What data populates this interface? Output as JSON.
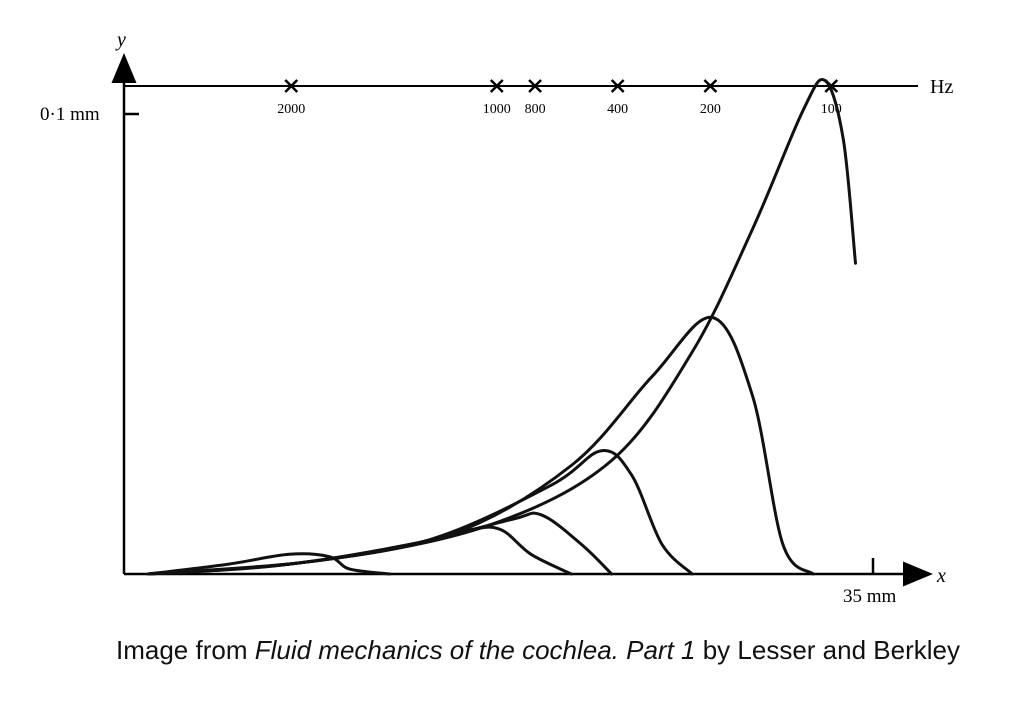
{
  "chart_data": {
    "type": "line",
    "title": "",
    "xlabel": "x",
    "ylabel": "y",
    "y_tick_label": "0·1 mm",
    "x_tick_label": "35 mm",
    "top_axis": {
      "unit": "Hz",
      "markers": [
        {
          "freq": 2000,
          "label": "2000",
          "x_mm": 8.1
        },
        {
          "freq": 1000,
          "label": "1000",
          "x_mm": 18.3
        },
        {
          "freq": 800,
          "label": "800",
          "x_mm": 20.2
        },
        {
          "freq": 400,
          "label": "400",
          "x_mm": 24.3
        },
        {
          "freq": 200,
          "label": "200",
          "x_mm": 28.9
        },
        {
          "freq": 100,
          "label": "100",
          "x_mm": 34.9
        }
      ]
    },
    "xlim": [
      -0.2,
      39.7
    ],
    "ylim": [
      0,
      0.105
    ],
    "series": [
      {
        "x": [
          1,
          5,
          8,
          10,
          11,
          13
        ],
        "y": [
          0,
          0.002,
          0.004,
          0.0035,
          0.001,
          0
        ]
      },
      {
        "x": [
          1,
          8,
          14,
          17,
          18.5,
          20,
          22
        ],
        "y": [
          0,
          0.002,
          0.006,
          0.009,
          0.009,
          0.004,
          0
        ]
      },
      {
        "x": [
          1,
          8,
          14,
          19,
          20.5,
          22.5,
          24
        ],
        "y": [
          0,
          0.002,
          0.006,
          0.011,
          0.012,
          0.006,
          0
        ]
      },
      {
        "x": [
          1,
          8,
          15,
          21,
          23.5,
          25,
          26.5,
          28
        ],
        "y": [
          0,
          0.002,
          0.007,
          0.018,
          0.025,
          0.02,
          0.006,
          0
        ]
      },
      {
        "x": [
          1,
          8,
          16,
          22,
          26,
          29,
          31,
          32.5,
          34
        ],
        "y": [
          0,
          0.002,
          0.008,
          0.022,
          0.04,
          0.052,
          0.036,
          0.006,
          0
        ]
      },
      {
        "x": [
          1,
          10,
          18,
          24,
          28,
          31,
          33.5,
          34.6,
          35.5,
          36.1
        ],
        "y": [
          0,
          0.003,
          0.01,
          0.023,
          0.045,
          0.07,
          0.094,
          0.1,
          0.088,
          0.063
        ]
      }
    ]
  },
  "caption": {
    "prefix": "Image from ",
    "title": "Fluid mechanics of the cochlea. Part 1",
    "suffix": " by Lesser and Berkley"
  }
}
